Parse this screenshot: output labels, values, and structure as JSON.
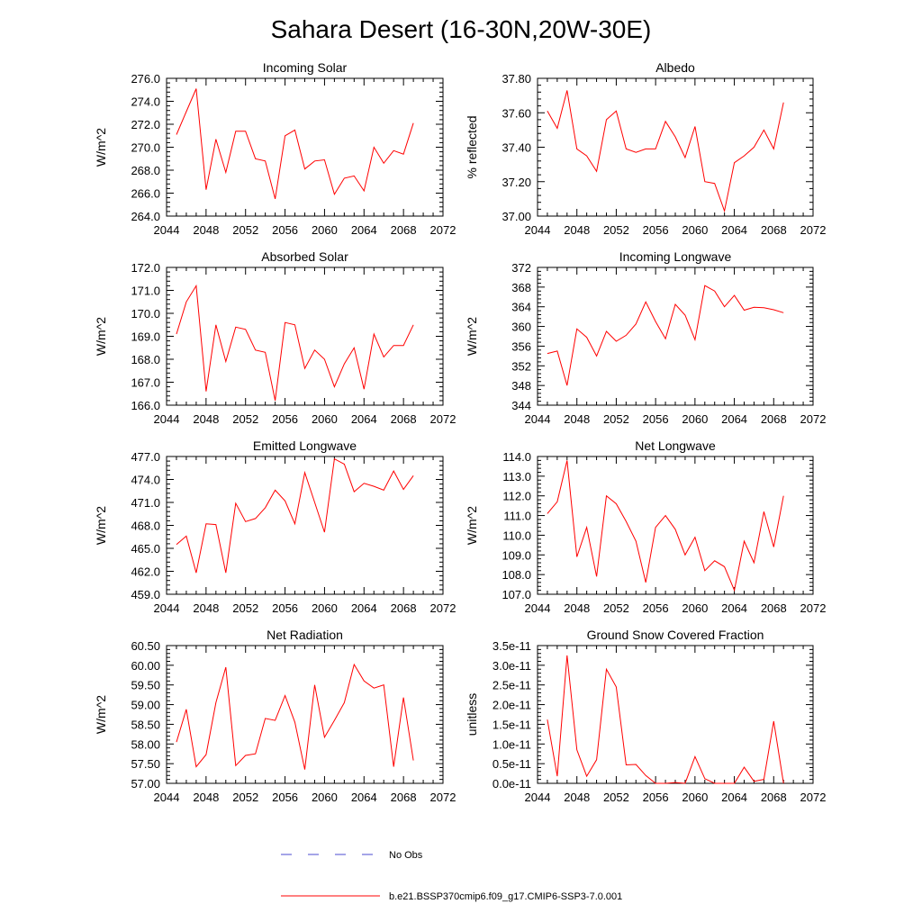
{
  "title": "Sahara Desert (16-30N,20W-30E)",
  "legend": {
    "obs_label": "No Obs",
    "obs_color": "#4b4bd0",
    "model_label": "b.e21.BSSP370cmip6.f09_g17.CMIP6-SSP3-7.0.001",
    "model_color": "#ff0000"
  },
  "chart_data": [
    {
      "type": "line",
      "title": "Incoming Solar",
      "xlabel": "",
      "ylabel": "W/m^2",
      "xlim": [
        2044,
        2072
      ],
      "ylim": [
        264,
        276
      ],
      "xticks": [
        2044,
        2048,
        2052,
        2056,
        2060,
        2064,
        2068,
        2072
      ],
      "xtick_labels": [
        "2044",
        "2048",
        "2052",
        "2056",
        "2060",
        "2064",
        "2068",
        "2072"
      ],
      "yticks": [
        264,
        266,
        268,
        270,
        272,
        274,
        276
      ],
      "ytick_labels": [
        "264.0",
        "266.0",
        "268.0",
        "270.0",
        "272.0",
        "274.0",
        "276.0"
      ],
      "x": [
        2045,
        2046,
        2047,
        2048,
        2049,
        2050,
        2051,
        2052,
        2053,
        2054,
        2055,
        2056,
        2057,
        2058,
        2059,
        2060,
        2061,
        2062,
        2063,
        2064,
        2065,
        2066,
        2067,
        2068,
        2069
      ],
      "values": [
        271.1,
        273.1,
        275.1,
        266.3,
        270.7,
        267.8,
        271.4,
        271.4,
        269.0,
        268.8,
        265.5,
        271.0,
        271.5,
        268.1,
        268.8,
        268.9,
        265.9,
        267.3,
        267.5,
        266.2,
        270.0,
        268.6,
        269.7,
        269.4,
        272.1
      ]
    },
    {
      "type": "line",
      "title": "Albedo",
      "xlabel": "",
      "ylabel": "% reflected",
      "xlim": [
        2044,
        2072
      ],
      "ylim": [
        37.0,
        37.8
      ],
      "xticks": [
        2044,
        2048,
        2052,
        2056,
        2060,
        2064,
        2068,
        2072
      ],
      "xtick_labels": [
        "2044",
        "2048",
        "2052",
        "2056",
        "2060",
        "2064",
        "2068",
        "2072"
      ],
      "yticks": [
        37.0,
        37.2,
        37.4,
        37.6,
        37.8
      ],
      "ytick_labels": [
        "37.00",
        "37.20",
        "37.40",
        "37.60",
        "37.80"
      ],
      "x": [
        2045,
        2046,
        2047,
        2048,
        2049,
        2050,
        2051,
        2052,
        2053,
        2054,
        2055,
        2056,
        2057,
        2058,
        2059,
        2060,
        2061,
        2062,
        2063,
        2064,
        2065,
        2066,
        2067,
        2068,
        2069
      ],
      "values": [
        37.61,
        37.51,
        37.73,
        37.39,
        37.35,
        37.26,
        37.56,
        37.61,
        37.39,
        37.37,
        37.39,
        37.39,
        37.55,
        37.46,
        37.34,
        37.52,
        37.2,
        37.19,
        37.03,
        37.31,
        37.35,
        37.4,
        37.5,
        37.39,
        37.66
      ]
    },
    {
      "type": "line",
      "title": "Absorbed Solar",
      "xlabel": "",
      "ylabel": "W/m^2",
      "xlim": [
        2044,
        2072
      ],
      "ylim": [
        166,
        172
      ],
      "xticks": [
        2044,
        2048,
        2052,
        2056,
        2060,
        2064,
        2068,
        2072
      ],
      "xtick_labels": [
        "2044",
        "2048",
        "2052",
        "2056",
        "2060",
        "2064",
        "2068",
        "2072"
      ],
      "yticks": [
        166,
        167,
        168,
        169,
        170,
        171,
        172
      ],
      "ytick_labels": [
        "166.0",
        "167.0",
        "168.0",
        "169.0",
        "170.0",
        "171.0",
        "172.0"
      ],
      "x": [
        2045,
        2046,
        2047,
        2048,
        2049,
        2050,
        2051,
        2052,
        2053,
        2054,
        2055,
        2056,
        2057,
        2058,
        2059,
        2060,
        2061,
        2062,
        2063,
        2064,
        2065,
        2066,
        2067,
        2068,
        2069
      ],
      "values": [
        169.1,
        170.5,
        171.2,
        166.6,
        169.5,
        167.9,
        169.4,
        169.3,
        168.4,
        168.3,
        166.2,
        169.6,
        169.5,
        167.6,
        168.4,
        168.0,
        166.8,
        167.8,
        168.5,
        166.7,
        169.1,
        168.1,
        168.6,
        168.6,
        169.5
      ]
    },
    {
      "type": "line",
      "title": "Incoming Longwave",
      "xlabel": "",
      "ylabel": "W/m^2",
      "xlim": [
        2044,
        2072
      ],
      "ylim": [
        344,
        372
      ],
      "xticks": [
        2044,
        2048,
        2052,
        2056,
        2060,
        2064,
        2068,
        2072
      ],
      "xtick_labels": [
        "2044",
        "2048",
        "2052",
        "2056",
        "2060",
        "2064",
        "2068",
        "2072"
      ],
      "yticks": [
        344,
        348,
        352,
        356,
        360,
        364,
        368,
        372
      ],
      "ytick_labels": [
        "344",
        "348",
        "352",
        "356",
        "360",
        "364",
        "368",
        "372"
      ],
      "x": [
        2045,
        2046,
        2047,
        2048,
        2049,
        2050,
        2051,
        2052,
        2053,
        2054,
        2055,
        2056,
        2057,
        2058,
        2059,
        2060,
        2061,
        2062,
        2063,
        2064,
        2065,
        2066,
        2067,
        2068,
        2069
      ],
      "values": [
        354.5,
        355.0,
        348.0,
        359.5,
        357.8,
        354.0,
        359.0,
        357.0,
        358.2,
        360.5,
        365.0,
        361.0,
        357.5,
        364.5,
        362.3,
        357.3,
        368.3,
        367.2,
        364.0,
        366.3,
        363.3,
        363.9,
        363.8,
        363.4,
        362.8
      ]
    },
    {
      "type": "line",
      "title": "Emitted Longwave",
      "xlabel": "",
      "ylabel": "W/m^2",
      "xlim": [
        2044,
        2072
      ],
      "ylim": [
        459,
        477
      ],
      "xticks": [
        2044,
        2048,
        2052,
        2056,
        2060,
        2064,
        2068,
        2072
      ],
      "xtick_labels": [
        "2044",
        "2048",
        "2052",
        "2056",
        "2060",
        "2064",
        "2068",
        "2072"
      ],
      "yticks": [
        459,
        462,
        465,
        468,
        471,
        474,
        477
      ],
      "ytick_labels": [
        "459.0",
        "462.0",
        "465.0",
        "468.0",
        "471.0",
        "474.0",
        "477.0"
      ],
      "x": [
        2045,
        2046,
        2047,
        2048,
        2049,
        2050,
        2051,
        2052,
        2053,
        2054,
        2055,
        2056,
        2057,
        2058,
        2059,
        2060,
        2061,
        2062,
        2063,
        2064,
        2065,
        2066,
        2067,
        2068,
        2069
      ],
      "values": [
        465.5,
        466.6,
        461.8,
        468.2,
        468.1,
        461.8,
        470.9,
        468.5,
        468.9,
        470.3,
        472.6,
        471.2,
        468.2,
        474.9,
        471.0,
        467.1,
        476.7,
        476.0,
        472.4,
        473.5,
        473.1,
        472.6,
        475.1,
        472.7,
        474.5
      ]
    },
    {
      "type": "line",
      "title": "Net Longwave",
      "xlabel": "",
      "ylabel": "W/m^2",
      "xlim": [
        2044,
        2072
      ],
      "ylim": [
        107,
        114
      ],
      "xticks": [
        2044,
        2048,
        2052,
        2056,
        2060,
        2064,
        2068,
        2072
      ],
      "xtick_labels": [
        "2044",
        "2048",
        "2052",
        "2056",
        "2060",
        "2064",
        "2068",
        "2072"
      ],
      "yticks": [
        107,
        108,
        109,
        110,
        111,
        112,
        113,
        114
      ],
      "ytick_labels": [
        "107.0",
        "108.0",
        "109.0",
        "110.0",
        "111.0",
        "112.0",
        "113.0",
        "114.0"
      ],
      "x": [
        2045,
        2046,
        2047,
        2048,
        2049,
        2050,
        2051,
        2052,
        2053,
        2054,
        2055,
        2056,
        2057,
        2058,
        2059,
        2060,
        2061,
        2062,
        2063,
        2064,
        2065,
        2066,
        2067,
        2068,
        2069
      ],
      "values": [
        111.1,
        111.7,
        113.8,
        108.9,
        110.4,
        107.9,
        112.0,
        111.6,
        110.7,
        109.7,
        107.6,
        110.4,
        111.0,
        110.3,
        109.0,
        109.9,
        108.2,
        108.7,
        108.4,
        107.2,
        109.7,
        108.6,
        111.2,
        109.4,
        112.0
      ]
    },
    {
      "type": "line",
      "title": "Net Radiation",
      "xlabel": "",
      "ylabel": "W/m^2",
      "xlim": [
        2044,
        2072
      ],
      "ylim": [
        57.0,
        60.5
      ],
      "xticks": [
        2044,
        2048,
        2052,
        2056,
        2060,
        2064,
        2068,
        2072
      ],
      "xtick_labels": [
        "2044",
        "2048",
        "2052",
        "2056",
        "2060",
        "2064",
        "2068",
        "2072"
      ],
      "yticks": [
        57.0,
        57.5,
        58.0,
        58.5,
        59.0,
        59.5,
        60.0,
        60.5
      ],
      "ytick_labels": [
        "57.00",
        "57.50",
        "58.00",
        "58.50",
        "59.00",
        "59.50",
        "60.00",
        "60.50"
      ],
      "x": [
        2045,
        2046,
        2047,
        2048,
        2049,
        2050,
        2051,
        2052,
        2053,
        2054,
        2055,
        2056,
        2057,
        2058,
        2059,
        2060,
        2061,
        2062,
        2063,
        2064,
        2065,
        2066,
        2067,
        2068,
        2069
      ],
      "values": [
        58.05,
        58.88,
        57.42,
        57.73,
        59.05,
        59.95,
        57.45,
        57.71,
        57.75,
        58.65,
        58.6,
        59.23,
        58.55,
        57.35,
        59.5,
        58.17,
        58.6,
        59.05,
        60.02,
        59.6,
        59.42,
        59.5,
        57.42,
        59.18,
        57.58
      ]
    },
    {
      "type": "line",
      "title": "Ground Snow Covered Fraction",
      "xlabel": "",
      "ylabel": "unitless",
      "xlim": [
        2044,
        2072
      ],
      "ylim": [
        0,
        3.5e-11
      ],
      "xticks": [
        2044,
        2048,
        2052,
        2056,
        2060,
        2064,
        2068,
        2072
      ],
      "xtick_labels": [
        "2044",
        "2048",
        "2052",
        "2056",
        "2060",
        "2064",
        "2068",
        "2072"
      ],
      "yticks": [
        0,
        5e-12,
        1e-11,
        1.5e-11,
        2e-11,
        2.5e-11,
        3e-11,
        3.5e-11
      ],
      "ytick_labels": [
        "0.0e-11",
        "0.5e-11",
        "1.0e-11",
        "1.5e-11",
        "2.0e-11",
        "2.5e-11",
        "3.0e-11",
        "3.5e-11"
      ],
      "x": [
        2045,
        2046,
        2047,
        2048,
        2049,
        2050,
        2051,
        2052,
        2053,
        2054,
        2055,
        2056,
        2057,
        2058,
        2059,
        2060,
        2061,
        2062,
        2063,
        2064,
        2065,
        2066,
        2067,
        2068,
        2069
      ],
      "values": [
        1.62e-11,
        1.8e-12,
        3.25e-11,
        8.5e-12,
        1.8e-12,
        6e-12,
        2.9e-11,
        2.45e-11,
        4.7e-12,
        4.8e-12,
        2e-12,
        0,
        0,
        2e-13,
        0,
        6.8e-12,
        1.2e-12,
        0,
        0,
        0,
        4.1e-12,
        5e-13,
        1e-12,
        1.58e-11,
        0
      ]
    }
  ]
}
